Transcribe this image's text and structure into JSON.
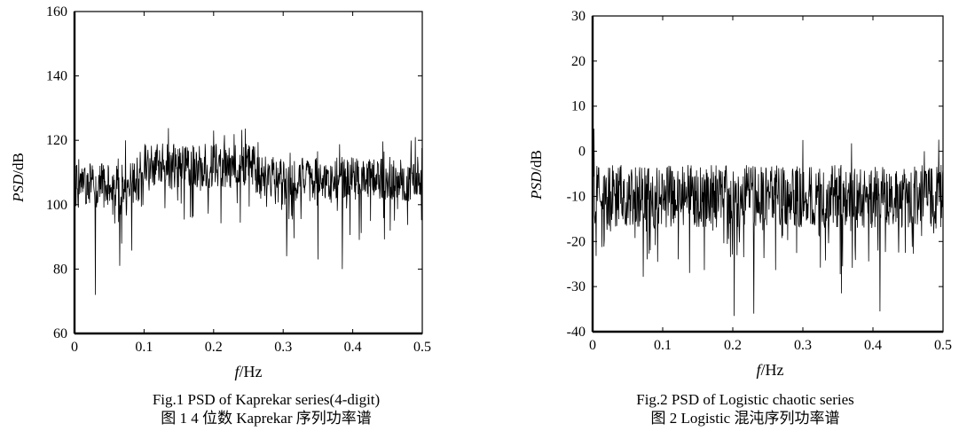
{
  "chart_data": [
    {
      "type": "line",
      "xlabel_italic": "f",
      "xlabel_unit": "/Hz",
      "ylabel_italic": "PSD",
      "ylabel_unit": "/dB",
      "xlim": [
        0,
        0.5
      ],
      "ylim": [
        60,
        160
      ],
      "xticks": [
        0,
        0.1,
        0.2,
        0.3,
        0.4,
        0.5
      ],
      "xtick_labels": [
        "0",
        "0.1",
        "0.2",
        "0.3",
        "0.4",
        "0.5"
      ],
      "yticks": [
        60,
        80,
        100,
        120,
        140,
        160
      ],
      "ytick_labels": [
        "60",
        "80",
        "100",
        "120",
        "140",
        "160"
      ],
      "grid": false,
      "legend": "none",
      "line_color": "#000000",
      "series_description": "Dense noisy power spectrum fluctuating between about 95 and 120 dB",
      "x": [
        0,
        0.0025,
        0.0125,
        0.025,
        0.03,
        0.05,
        0.065,
        0.08,
        0.1,
        0.12,
        0.15,
        0.16,
        0.18,
        0.2,
        0.205,
        0.22,
        0.25,
        0.28,
        0.3,
        0.305,
        0.33,
        0.34,
        0.35,
        0.38,
        0.385,
        0.4,
        0.42,
        0.45,
        0.47,
        0.49,
        0.5
      ],
      "y": [
        125,
        112,
        105,
        108,
        72,
        106,
        81,
        106,
        110,
        112,
        115,
        118,
        114,
        123,
        111,
        114,
        109,
        112,
        107,
        84,
        108,
        110,
        83,
        107,
        80,
        109,
        108,
        110,
        106,
        121,
        115
      ],
      "caption_en": "Fig.1 PSD of Kaprekar series(4-digit)",
      "caption_zh": "图 1 4 位数 Kaprekar 序列功率谱"
    },
    {
      "type": "line",
      "xlabel_italic": "f",
      "xlabel_unit": "/Hz",
      "ylabel_italic": "PSD",
      "ylabel_unit": "/dB",
      "xlim": [
        0,
        0.5
      ],
      "ylim": [
        -40,
        30
      ],
      "xticks": [
        0,
        0.1,
        0.2,
        0.3,
        0.4,
        0.5
      ],
      "xtick_labels": [
        "0",
        "0.1",
        "0.2",
        "0.3",
        "0.4",
        "0.5"
      ],
      "yticks": [
        -40,
        -30,
        -20,
        -10,
        0,
        10,
        20,
        30
      ],
      "ytick_labels": [
        "-40",
        "-30",
        "-20",
        "-10",
        "0",
        "10",
        "20",
        "30"
      ],
      "grid": false,
      "legend": "none",
      "line_color": "#000000",
      "series_description": "Dense noisy power spectrum of a chaotic series fluctuating between about -25 and 0 dB",
      "x": [
        0,
        0.002,
        0.01,
        0.05,
        0.1,
        0.15,
        0.2,
        0.202,
        0.22,
        0.23,
        0.25,
        0.3,
        0.302,
        0.35,
        0.355,
        0.4,
        0.41,
        0.45,
        0.5
      ],
      "y": [
        8,
        5,
        -10,
        -12,
        -8,
        -11,
        -15,
        -36.5,
        -10,
        -36,
        -9,
        2.5,
        -12,
        -10,
        -31.5,
        -9,
        -35.5,
        -11,
        -4
      ],
      "caption_en": "Fig.2 PSD of Logistic chaotic series",
      "caption_zh": "图 2 Logistic 混沌序列功率谱"
    }
  ]
}
